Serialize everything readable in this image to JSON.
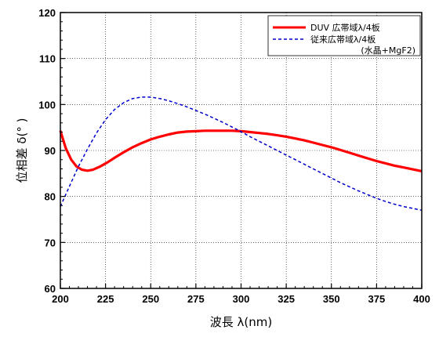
{
  "chart_data": {
    "type": "line",
    "xlabel": "波長 λ(nm)",
    "ylabel": "位相差 δ(° )",
    "xlim": [
      200,
      400
    ],
    "ylim": [
      60,
      120
    ],
    "x_ticks": [
      200,
      225,
      250,
      275,
      300,
      325,
      350,
      375,
      400
    ],
    "y_ticks": [
      60,
      70,
      80,
      90,
      100,
      110,
      120
    ],
    "grid": true,
    "legend_position": "top-right",
    "series": [
      {
        "name": "DUV 広帯域λ/4板",
        "color": "#ff0000",
        "style": "solid",
        "x": [
          200,
          203,
          206,
          209,
          212,
          215,
          218,
          222,
          226,
          230,
          235,
          240,
          245,
          250,
          255,
          260,
          265,
          270,
          275,
          280,
          285,
          290,
          295,
          300,
          305,
          310,
          315,
          320,
          325,
          330,
          335,
          340,
          345,
          350,
          355,
          360,
          365,
          370,
          375,
          380,
          385,
          390,
          395,
          400
        ],
        "y": [
          94.3,
          90.5,
          88.0,
          86.5,
          85.8,
          85.6,
          85.8,
          86.5,
          87.4,
          88.4,
          89.6,
          90.7,
          91.6,
          92.4,
          93.0,
          93.5,
          93.9,
          94.1,
          94.2,
          94.3,
          94.3,
          94.3,
          94.3,
          94.2,
          94.0,
          93.8,
          93.6,
          93.3,
          93.0,
          92.6,
          92.2,
          91.7,
          91.2,
          90.7,
          90.1,
          89.5,
          88.9,
          88.3,
          87.7,
          87.2,
          86.7,
          86.3,
          85.9,
          85.5
        ]
      },
      {
        "name": "従来広帯域λ/4板\n(水晶+MgF2)",
        "color": "#0000cc",
        "style": "dashed",
        "x": [
          200,
          205,
          210,
          215,
          220,
          225,
          230,
          235,
          240,
          245,
          250,
          255,
          260,
          265,
          270,
          275,
          280,
          285,
          290,
          295,
          300,
          305,
          310,
          315,
          320,
          325,
          330,
          335,
          340,
          345,
          350,
          355,
          360,
          365,
          370,
          375,
          380,
          385,
          390,
          395,
          400
        ],
        "y": [
          77.8,
          82.2,
          86.5,
          90.3,
          93.8,
          96.7,
          98.9,
          100.4,
          101.3,
          101.6,
          101.6,
          101.3,
          100.8,
          100.2,
          99.5,
          98.7,
          97.9,
          97.0,
          96.1,
          95.1,
          94.1,
          93.0,
          92.0,
          91.0,
          90.0,
          89.0,
          88.0,
          87.0,
          86.0,
          85.0,
          84.0,
          83.0,
          82.1,
          81.2,
          80.4,
          79.6,
          78.9,
          78.3,
          77.8,
          77.4,
          77.0
        ]
      }
    ]
  }
}
